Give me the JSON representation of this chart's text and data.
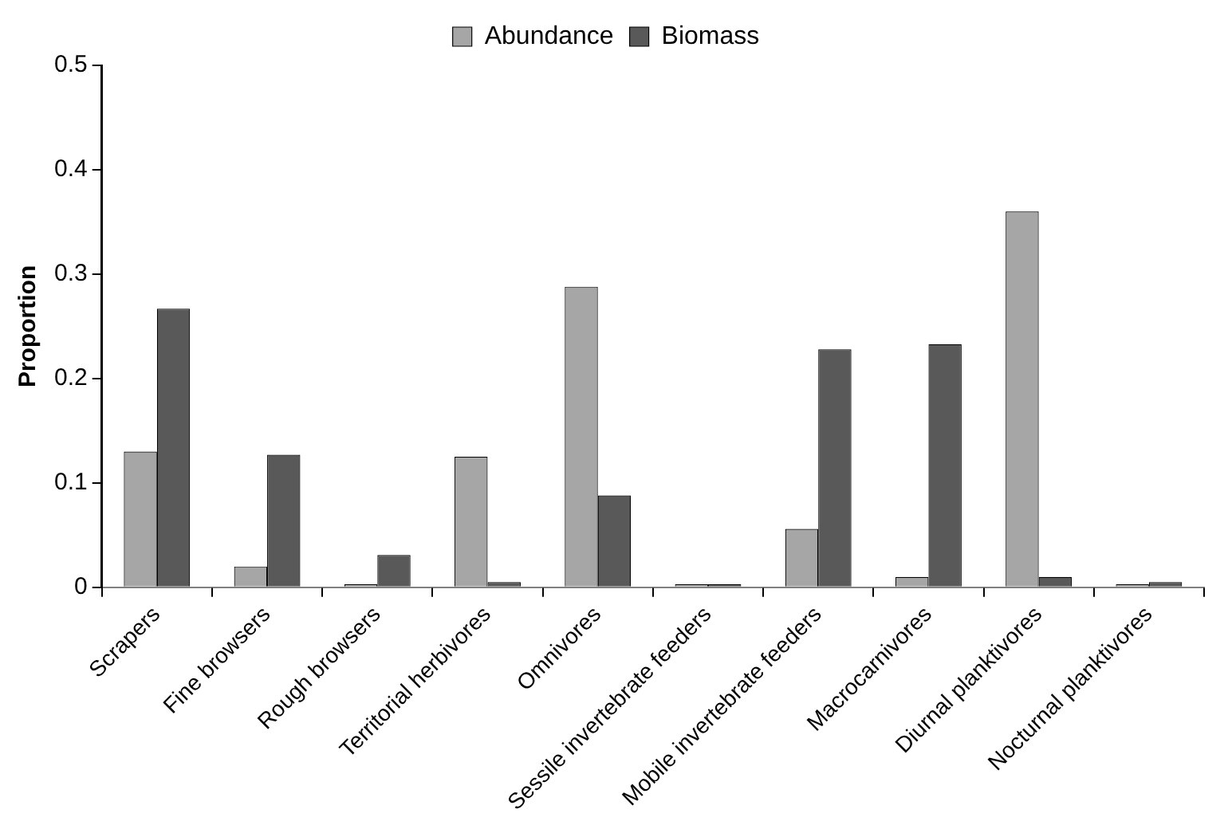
{
  "chart_data": {
    "type": "bar",
    "ylabel": "Proportion",
    "categories": [
      "Scrapers",
      "Fine browsers",
      "Rough browsers",
      "Territorial herbivores",
      "Omnivores",
      "Sessile invertebrate feeders",
      "Mobile invertebrate feeders",
      "Macrocarnivores",
      "Diurnal planktivores",
      "Nocturnal planktivores"
    ],
    "series": [
      {
        "name": "Abundance",
        "color": "#a6a6a6",
        "values": [
          0.13,
          0.02,
          0.003,
          0.125,
          0.288,
          0.003,
          0.056,
          0.01,
          0.36,
          0.003
        ]
      },
      {
        "name": "Biomass",
        "color": "#595959",
        "values": [
          0.267,
          0.127,
          0.031,
          0.005,
          0.088,
          0.003,
          0.228,
          0.233,
          0.01,
          0.005
        ]
      }
    ],
    "ylim": [
      0,
      0.5
    ],
    "yticks": [
      0,
      0.1,
      0.2,
      0.3,
      0.4,
      0.5
    ],
    "grid": false,
    "legend": "top"
  }
}
